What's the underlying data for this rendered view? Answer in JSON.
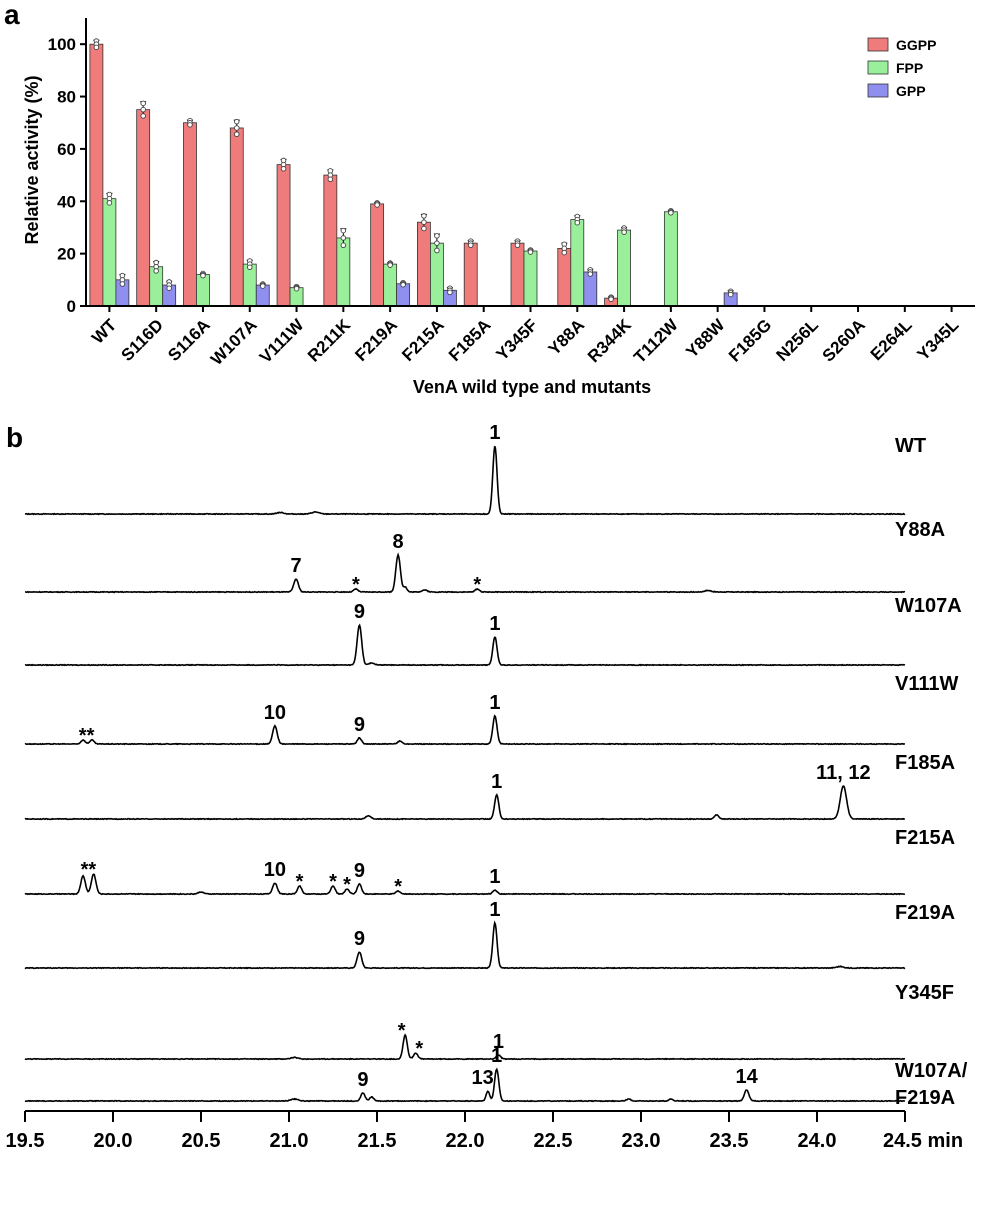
{
  "panels": {
    "a": "a",
    "b": "b"
  },
  "chart_data": [
    {
      "type": "bar",
      "title": "",
      "ylabel": "Relative activity (%)",
      "xlabel": "VenA wild type and mutants",
      "ylim": [
        0,
        110
      ],
      "yticks": [
        0,
        20,
        40,
        60,
        80,
        100
      ],
      "legend_position": "top-right",
      "categories": [
        "WT",
        "S116D",
        "S116A",
        "W107A",
        "V111W",
        "R211K",
        "F219A",
        "F215A",
        "F185A",
        "Y345F",
        "Y88A",
        "R344K",
        "T112W",
        "Y88W",
        "F185G",
        "N256L",
        "S260A",
        "E264L",
        "Y345L"
      ],
      "series": [
        {
          "name": "GGPP",
          "color": "#f07b7b",
          "values": [
            100,
            75,
            70,
            68,
            54,
            50,
            39,
            32,
            24,
            24,
            22,
            3,
            0,
            0,
            0,
            0,
            0,
            0,
            0
          ],
          "errors": [
            1.5,
            3,
            1,
            3,
            2,
            2,
            0.5,
            3,
            1,
            1,
            2,
            0.5,
            0,
            0,
            0,
            0,
            0,
            0,
            0
          ]
        },
        {
          "name": "FPP",
          "color": "#9af09a",
          "values": [
            41,
            15,
            12,
            16,
            7,
            26,
            16,
            24,
            0,
            21,
            33,
            29,
            36,
            0,
            0,
            0,
            0,
            0,
            0
          ],
          "errors": [
            2,
            2,
            0.5,
            1.5,
            0.5,
            3.5,
            0.5,
            3.5,
            0,
            0.5,
            1.5,
            1,
            0.5,
            0,
            0,
            0,
            0,
            0,
            0
          ]
        },
        {
          "name": "GPP",
          "color": "#8f8ff0",
          "values": [
            10,
            8,
            0,
            8,
            0,
            0,
            8.5,
            6,
            0,
            0,
            13,
            0,
            0,
            5,
            0,
            0,
            0,
            0,
            0
          ],
          "errors": [
            2,
            1.5,
            0,
            0.5,
            0,
            0,
            0.5,
            1,
            0,
            0,
            1,
            0,
            0,
            0.8,
            0,
            0,
            0,
            0,
            0
          ]
        }
      ]
    },
    {
      "type": "line",
      "title": "",
      "xlabel": "min",
      "xlim": [
        19.5,
        24.5
      ],
      "xticks": [
        19.5,
        20.0,
        20.5,
        21.0,
        21.5,
        22.0,
        22.5,
        23.0,
        23.5,
        24.0,
        24.5
      ],
      "xtick_labels": [
        "19.5",
        "20.0",
        "20.5",
        "21.0",
        "21.5",
        "22.0",
        "22.5",
        "23.0",
        "23.5",
        "24.0",
        "24.5 min"
      ],
      "traces": [
        {
          "name": "WT",
          "label_lines": [
            "WT"
          ],
          "peaks": [
            {
              "x": 22.17,
              "h": 68,
              "w": 0.012
            },
            {
              "x": 21.15,
              "h": 2,
              "w": 0.02
            },
            {
              "x": 20.95,
              "h": 1.5,
              "w": 0.02
            }
          ],
          "annotations": [
            {
              "x": 22.17,
              "text": "1"
            }
          ]
        },
        {
          "name": "Y88A",
          "label_lines": [
            "Y88A"
          ],
          "peaks": [
            {
              "x": 21.04,
              "h": 13,
              "w": 0.013
            },
            {
              "x": 21.38,
              "h": 3,
              "w": 0.012
            },
            {
              "x": 21.62,
              "h": 37,
              "w": 0.013
            },
            {
              "x": 21.66,
              "h": 5,
              "w": 0.01
            },
            {
              "x": 21.77,
              "h": 2,
              "w": 0.015
            },
            {
              "x": 22.07,
              "h": 3,
              "w": 0.012
            },
            {
              "x": 23.38,
              "h": 1.5,
              "w": 0.02
            }
          ],
          "annotations": [
            {
              "x": 21.04,
              "text": "7"
            },
            {
              "x": 21.38,
              "text": "*"
            },
            {
              "x": 21.62,
              "text": "8"
            },
            {
              "x": 22.07,
              "text": "*"
            }
          ]
        },
        {
          "name": "W107A",
          "label_lines": [
            "W107A"
          ],
          "peaks": [
            {
              "x": 21.4,
              "h": 40,
              "w": 0.013
            },
            {
              "x": 21.47,
              "h": 2,
              "w": 0.015
            },
            {
              "x": 22.17,
              "h": 28,
              "w": 0.012
            }
          ],
          "annotations": [
            {
              "x": 21.4,
              "text": "9"
            },
            {
              "x": 22.17,
              "text": "1"
            }
          ]
        },
        {
          "name": "V111W",
          "label_lines": [
            "V111W"
          ],
          "peaks": [
            {
              "x": 19.83,
              "h": 4,
              "w": 0.012
            },
            {
              "x": 19.88,
              "h": 4,
              "w": 0.012
            },
            {
              "x": 20.92,
              "h": 18,
              "w": 0.013
            },
            {
              "x": 21.4,
              "h": 6,
              "w": 0.012
            },
            {
              "x": 21.63,
              "h": 3,
              "w": 0.012
            },
            {
              "x": 22.17,
              "h": 28,
              "w": 0.012
            }
          ],
          "annotations": [
            {
              "x": 19.85,
              "text": "**"
            },
            {
              "x": 20.92,
              "text": "10"
            },
            {
              "x": 21.4,
              "text": "9"
            },
            {
              "x": 22.17,
              "text": "1"
            }
          ]
        },
        {
          "name": "F185A",
          "label_lines": [
            "F185A"
          ],
          "peaks": [
            {
              "x": 21.45,
              "h": 3,
              "w": 0.015
            },
            {
              "x": 22.18,
              "h": 24,
              "w": 0.012
            },
            {
              "x": 23.43,
              "h": 4,
              "w": 0.012
            },
            {
              "x": 24.15,
              "h": 33,
              "w": 0.018
            }
          ],
          "annotations": [
            {
              "x": 22.18,
              "text": "1"
            },
            {
              "x": 24.15,
              "text": "11, 12"
            }
          ]
        },
        {
          "name": "F215A",
          "label_lines": [
            "F215A"
          ],
          "peaks": [
            {
              "x": 19.83,
              "h": 18,
              "w": 0.013
            },
            {
              "x": 19.89,
              "h": 20,
              "w": 0.013
            },
            {
              "x": 20.5,
              "h": 2,
              "w": 0.015
            },
            {
              "x": 20.92,
              "h": 11,
              "w": 0.013
            },
            {
              "x": 21.06,
              "h": 8,
              "w": 0.012
            },
            {
              "x": 21.25,
              "h": 8,
              "w": 0.012
            },
            {
              "x": 21.33,
              "h": 5,
              "w": 0.012
            },
            {
              "x": 21.4,
              "h": 10,
              "w": 0.012
            },
            {
              "x": 21.62,
              "h": 3,
              "w": 0.012
            },
            {
              "x": 22.17,
              "h": 4,
              "w": 0.012
            }
          ],
          "annotations": [
            {
              "x": 19.86,
              "text": "**"
            },
            {
              "x": 20.92,
              "text": "10"
            },
            {
              "x": 21.06,
              "text": "*"
            },
            {
              "x": 21.25,
              "text": "*"
            },
            {
              "x": 21.33,
              "text": "*"
            },
            {
              "x": 21.4,
              "text": "9"
            },
            {
              "x": 21.62,
              "text": "*"
            },
            {
              "x": 22.17,
              "text": "1"
            }
          ]
        },
        {
          "name": "F219A",
          "label_lines": [
            "F219A"
          ],
          "peaks": [
            {
              "x": 21.4,
              "h": 16,
              "w": 0.013
            },
            {
              "x": 22.17,
              "h": 45,
              "w": 0.012
            },
            {
              "x": 24.13,
              "h": 1.5,
              "w": 0.02
            }
          ],
          "annotations": [
            {
              "x": 21.4,
              "text": "9"
            },
            {
              "x": 22.17,
              "text": "1"
            }
          ]
        },
        {
          "name": "Y345F",
          "label_lines": [
            "Y345F"
          ],
          "peaks": [
            {
              "x": 21.03,
              "h": 1.5,
              "w": 0.02
            },
            {
              "x": 21.66,
              "h": 24,
              "w": 0.012
            },
            {
              "x": 21.72,
              "h": 6,
              "w": 0.012
            },
            {
              "x": 22.19,
              "h": 4,
              "w": 0.012
            }
          ],
          "annotations": [
            {
              "x": 21.64,
              "text": "*"
            },
            {
              "x": 21.74,
              "text": "*"
            },
            {
              "x": 22.19,
              "text": "1"
            }
          ]
        },
        {
          "name": "W107A/F219A",
          "label_lines": [
            "W107A/",
            "F219A"
          ],
          "peaks": [
            {
              "x": 21.03,
              "h": 2,
              "w": 0.02
            },
            {
              "x": 21.42,
              "h": 8,
              "w": 0.012
            },
            {
              "x": 21.47,
              "h": 4,
              "w": 0.012
            },
            {
              "x": 22.13,
              "h": 10,
              "w": 0.01
            },
            {
              "x": 22.18,
              "h": 32,
              "w": 0.012
            },
            {
              "x": 22.93,
              "h": 2,
              "w": 0.012
            },
            {
              "x": 23.17,
              "h": 2,
              "w": 0.012
            },
            {
              "x": 23.6,
              "h": 11,
              "w": 0.013
            }
          ],
          "annotations": [
            {
              "x": 21.42,
              "text": "9"
            },
            {
              "x": 22.1,
              "text": "13"
            },
            {
              "x": 22.18,
              "text": "1"
            },
            {
              "x": 23.6,
              "text": "14"
            }
          ]
        }
      ]
    }
  ]
}
